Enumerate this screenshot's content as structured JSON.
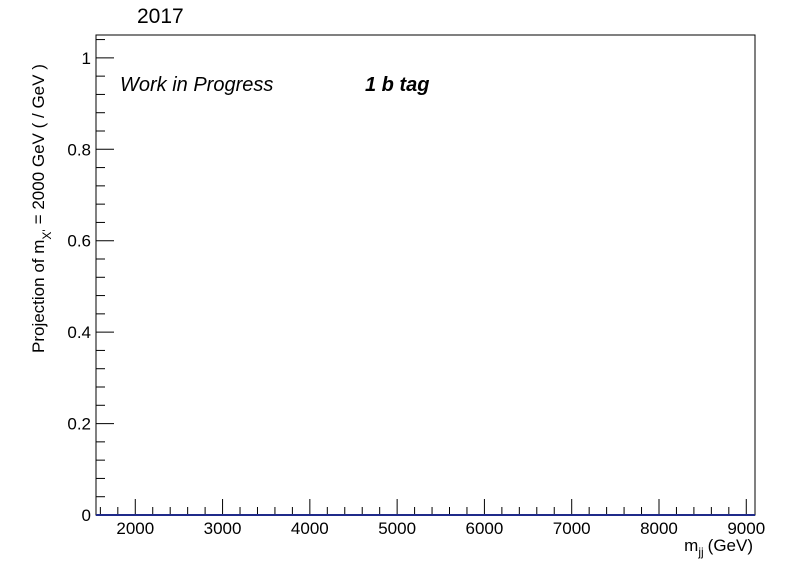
{
  "chart_data": {
    "type": "line",
    "title": "2017",
    "annotations": [
      "Work in Progress",
      "1 b tag"
    ],
    "xlabel_main": "m",
    "xlabel_sub": "jj",
    "xlabel_unit": "(GeV)",
    "ylabel_pre": "Projection of m",
    "ylabel_sub": "X'",
    "ylabel_post": "= 2000 GeV ( / GeV )",
    "xlim": [
      1550,
      9100
    ],
    "ylim": [
      0,
      1.05
    ],
    "xticks": [
      2000,
      3000,
      4000,
      5000,
      6000,
      7000,
      8000,
      9000
    ],
    "xtick_labels": [
      "2000",
      "3000",
      "4000",
      "5000",
      "6000",
      "7000",
      "8000",
      "9000"
    ],
    "yticks": [
      0,
      0.2,
      0.4,
      0.6,
      0.8,
      1
    ],
    "ytick_labels": [
      "0",
      "0.2",
      "0.4",
      "0.6",
      "0.8",
      "1"
    ],
    "grid": false,
    "series": [
      {
        "color": "#1f2a8a",
        "x": [
          1550,
          9100
        ],
        "y": [
          0,
          0
        ]
      }
    ]
  }
}
